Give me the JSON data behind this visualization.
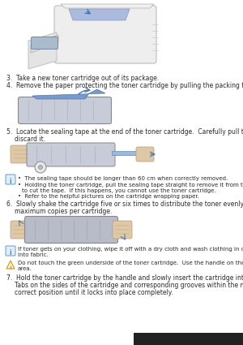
{
  "bg_color": "#ffffff",
  "text_color": "#2a2a2a",
  "note_icon_color": "#5588bb",
  "warn_icon_color": "#cc8800",
  "font_size_body": 5.5,
  "font_size_note": 5.0,
  "step3": "Take a new toner cartridge out of its package.",
  "step4": "Remove the paper protecting the toner cartridge by pulling the packing tape.",
  "step5a": "Locate the sealing tape at the end of the toner cartridge.  Carefully pull the tape completely out of the cartridge and",
  "step5b": "discard it.",
  "bullet1": "The sealing tape should be longer than 60 cm when correctly removed.",
  "bullet2a": "Holding the toner cartridge, pull the sealing tape straight to remove it from the cartridge.  Be careful not",
  "bullet2b": "to cut the tape.  If this happens, you cannot use the toner cartridge.",
  "bullet3": "Refer to the helpful pictures on the cartridge wrapping paper.",
  "step6a": "Slowly shake the cartridge five or six times to distribute the toner evenly inside the cartridge.  It will assure",
  "step6b": "maximum copies per cartridge.",
  "note6a": "If toner gets on your clothing, wipe it off with a dry cloth and wash clothing in cold water.  Hot water sets toner",
  "note6b": "into fabric.",
  "warn6a": "Do not touch the green underside of the toner cartridge.  Use the handle on the cartridge to avoid touching this",
  "warn6b": "area.",
  "step7a": "Hold the toner cartridge by the handle and slowly insert the cartridge into the opening in the machine.",
  "step7b": "Tabs on the sides of the cartridge and corresponding grooves within the machine will guide the cartridge into the",
  "step7c": "correct position until it locks into place completely.",
  "bottom_bar_color": "#222222",
  "printer_body_color": "#eeeeee",
  "printer_edge_color": "#bbbbbb",
  "cartridge_color": "#aabbcc",
  "cartridge_dark": "#7788aa",
  "hand_color": "#ddc8a8",
  "hand_edge": "#bb9977",
  "tape_color": "#99bbdd",
  "arrow_color": "#4477aa"
}
